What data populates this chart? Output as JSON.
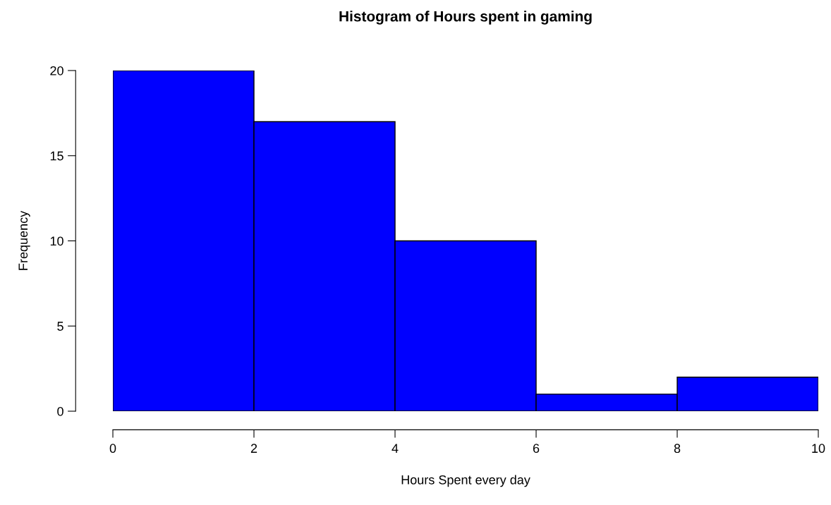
{
  "chart_data": {
    "type": "histogram",
    "title": "Histogram of Hours spent in gaming",
    "xlabel": "Hours Spent every day",
    "ylabel": "Frequency",
    "bins": [
      0,
      2,
      4,
      6,
      8,
      10
    ],
    "values": [
      20,
      17,
      10,
      1,
      2
    ],
    "color": "#0000ff",
    "xlim": [
      0,
      10
    ],
    "ylim": [
      0,
      20
    ],
    "xticks": [
      0,
      2,
      4,
      6,
      8,
      10
    ],
    "yticks": [
      0,
      5,
      10,
      15,
      20
    ],
    "grid": false
  }
}
